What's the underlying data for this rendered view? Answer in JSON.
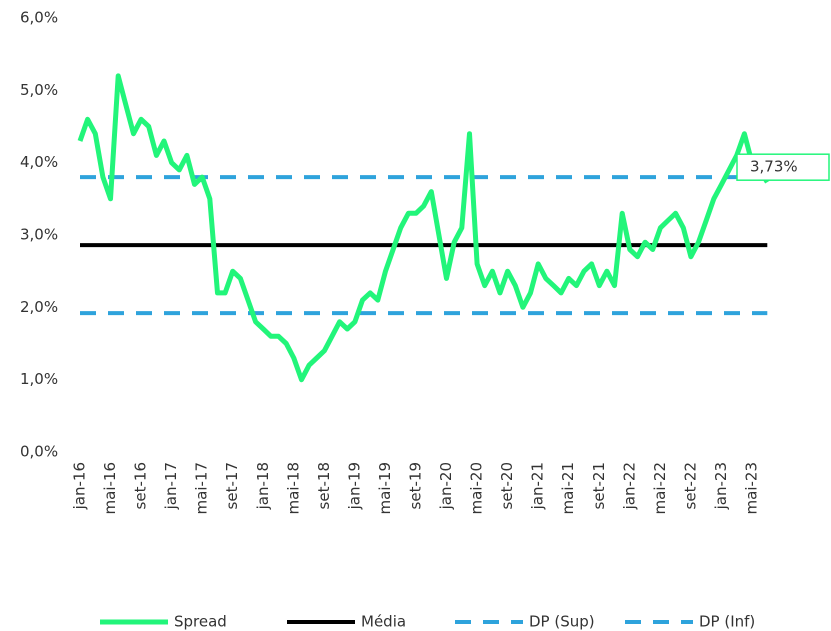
{
  "chart_data": {
    "type": "line",
    "categories": [
      "jan-16",
      null,
      null,
      null,
      "mai-16",
      null,
      null,
      null,
      "set-16",
      null,
      null,
      null,
      "jan-17",
      null,
      null,
      null,
      "mai-17",
      null,
      null,
      null,
      "set-17",
      null,
      null,
      null,
      "jan-18",
      null,
      null,
      null,
      "mai-18",
      null,
      null,
      null,
      "set-18",
      null,
      null,
      null,
      "jan-19",
      null,
      null,
      null,
      "mai-19",
      null,
      null,
      null,
      "set-19",
      null,
      null,
      null,
      "jan-20",
      null,
      null,
      null,
      "mai-20",
      null,
      null,
      null,
      "set-20",
      null,
      null,
      null,
      "jan-21",
      null,
      null,
      null,
      "mai-21",
      null,
      null,
      null,
      "set-21",
      null,
      null,
      null,
      "jan-22",
      null,
      null,
      null,
      "mai-22",
      null,
      null,
      null,
      "set-22",
      null,
      null,
      null,
      "jan-23",
      null,
      null,
      null,
      "mai-23",
      null,
      null
    ],
    "series": [
      {
        "name": "Spread",
        "color": "#22f57a",
        "style": "solid",
        "width": 5,
        "values": [
          4.3,
          4.6,
          4.4,
          3.8,
          3.5,
          5.2,
          4.8,
          4.4,
          4.6,
          4.5,
          4.1,
          4.3,
          4.0,
          3.9,
          4.1,
          3.7,
          3.8,
          3.5,
          2.2,
          2.2,
          2.5,
          2.4,
          2.1,
          1.8,
          1.7,
          1.6,
          1.6,
          1.5,
          1.3,
          1.0,
          1.2,
          1.3,
          1.4,
          1.6,
          1.8,
          1.7,
          1.8,
          2.1,
          2.2,
          2.1,
          2.5,
          2.8,
          3.1,
          3.3,
          3.3,
          3.4,
          3.6,
          3.0,
          2.4,
          2.9,
          3.1,
          4.4,
          2.6,
          2.3,
          2.5,
          2.2,
          2.5,
          2.3,
          2.0,
          2.2,
          2.6,
          2.4,
          2.3,
          2.2,
          2.4,
          2.3,
          2.5,
          2.6,
          2.3,
          2.5,
          2.3,
          3.3,
          2.8,
          2.7,
          2.9,
          2.8,
          3.1,
          3.2,
          3.3,
          3.1,
          2.7,
          2.9,
          3.2,
          3.5,
          3.7,
          3.9,
          4.1,
          4.4,
          4.0,
          3.9,
          3.73
        ],
        "value_labels": [
          null,
          null,
          null,
          null,
          null,
          null,
          null,
          null,
          null,
          null,
          null,
          null,
          null,
          null,
          null,
          null,
          null,
          null,
          null,
          null,
          null,
          null,
          null,
          null,
          null,
          null,
          null,
          null,
          null,
          null,
          null,
          null,
          null,
          null,
          null,
          null,
          null,
          null,
          null,
          null,
          null,
          null,
          null,
          null,
          null,
          null,
          null,
          null,
          null,
          null,
          null,
          null,
          null,
          null,
          null,
          null,
          null,
          null,
          null,
          null,
          null,
          null,
          null,
          null,
          null,
          null,
          null,
          null,
          null,
          null,
          null,
          null,
          null,
          null,
          null,
          null,
          null,
          null,
          null,
          null,
          null,
          null,
          null,
          null,
          null,
          null,
          null,
          null,
          null,
          null,
          "3,73%"
        ]
      },
      {
        "name": "Média",
        "color": "#000000",
        "style": "solid",
        "width": 4,
        "values": [
          2.86,
          2.86,
          2.86,
          2.86,
          2.86,
          2.86,
          2.86,
          2.86,
          2.86,
          2.86,
          2.86,
          2.86,
          2.86,
          2.86,
          2.86,
          2.86,
          2.86,
          2.86,
          2.86,
          2.86,
          2.86,
          2.86,
          2.86,
          2.86,
          2.86,
          2.86,
          2.86,
          2.86,
          2.86,
          2.86,
          2.86,
          2.86,
          2.86,
          2.86,
          2.86,
          2.86,
          2.86,
          2.86,
          2.86,
          2.86,
          2.86,
          2.86,
          2.86,
          2.86,
          2.86,
          2.86,
          2.86,
          2.86,
          2.86,
          2.86,
          2.86,
          2.86,
          2.86,
          2.86,
          2.86,
          2.86,
          2.86,
          2.86,
          2.86,
          2.86,
          2.86,
          2.86,
          2.86,
          2.86,
          2.86,
          2.86,
          2.86,
          2.86,
          2.86,
          2.86,
          2.86,
          2.86,
          2.86,
          2.86,
          2.86,
          2.86,
          2.86,
          2.86,
          2.86,
          2.86,
          2.86,
          2.86,
          2.86,
          2.86,
          2.86,
          2.86,
          2.86,
          2.86,
          2.86,
          2.86,
          2.86
        ]
      },
      {
        "name": "DP (Sup)",
        "color": "#2ea3dc",
        "style": "dashed",
        "width": 4,
        "values": [
          3.8,
          3.8,
          3.8,
          3.8,
          3.8,
          3.8,
          3.8,
          3.8,
          3.8,
          3.8,
          3.8,
          3.8,
          3.8,
          3.8,
          3.8,
          3.8,
          3.8,
          3.8,
          3.8,
          3.8,
          3.8,
          3.8,
          3.8,
          3.8,
          3.8,
          3.8,
          3.8,
          3.8,
          3.8,
          3.8,
          3.8,
          3.8,
          3.8,
          3.8,
          3.8,
          3.8,
          3.8,
          3.8,
          3.8,
          3.8,
          3.8,
          3.8,
          3.8,
          3.8,
          3.8,
          3.8,
          3.8,
          3.8,
          3.8,
          3.8,
          3.8,
          3.8,
          3.8,
          3.8,
          3.8,
          3.8,
          3.8,
          3.8,
          3.8,
          3.8,
          3.8,
          3.8,
          3.8,
          3.8,
          3.8,
          3.8,
          3.8,
          3.8,
          3.8,
          3.8,
          3.8,
          3.8,
          3.8,
          3.8,
          3.8,
          3.8,
          3.8,
          3.8,
          3.8,
          3.8,
          3.8,
          3.8,
          3.8,
          3.8,
          3.8,
          3.8,
          3.8,
          3.8,
          3.8,
          3.8,
          3.8
        ]
      },
      {
        "name": "DP (Inf)",
        "color": "#2ea3dc",
        "style": "dashed",
        "width": 4,
        "values": [
          1.92,
          1.92,
          1.92,
          1.92,
          1.92,
          1.92,
          1.92,
          1.92,
          1.92,
          1.92,
          1.92,
          1.92,
          1.92,
          1.92,
          1.92,
          1.92,
          1.92,
          1.92,
          1.92,
          1.92,
          1.92,
          1.92,
          1.92,
          1.92,
          1.92,
          1.92,
          1.92,
          1.92,
          1.92,
          1.92,
          1.92,
          1.92,
          1.92,
          1.92,
          1.92,
          1.92,
          1.92,
          1.92,
          1.92,
          1.92,
          1.92,
          1.92,
          1.92,
          1.92,
          1.92,
          1.92,
          1.92,
          1.92,
          1.92,
          1.92,
          1.92,
          1.92,
          1.92,
          1.92,
          1.92,
          1.92,
          1.92,
          1.92,
          1.92,
          1.92,
          1.92,
          1.92,
          1.92,
          1.92,
          1.92,
          1.92,
          1.92,
          1.92,
          1.92,
          1.92,
          1.92,
          1.92,
          1.92,
          1.92,
          1.92,
          1.92,
          1.92,
          1.92,
          1.92,
          1.92,
          1.92,
          1.92,
          1.92,
          1.92,
          1.92,
          1.92,
          1.92,
          1.92,
          1.92,
          1.92,
          1.92
        ]
      }
    ],
    "ylim": [
      0,
      6
    ],
    "yticks": [
      {
        "value": 0,
        "label": "0,0%"
      },
      {
        "value": 1,
        "label": "1,0%"
      },
      {
        "value": 2,
        "label": "2,0%"
      },
      {
        "value": 3,
        "label": "3,0%"
      },
      {
        "value": 4,
        "label": "4,0%"
      },
      {
        "value": 5,
        "label": "5,0%"
      },
      {
        "value": 6,
        "label": "6,0%"
      }
    ],
    "grid": false,
    "legend": "bottom"
  }
}
